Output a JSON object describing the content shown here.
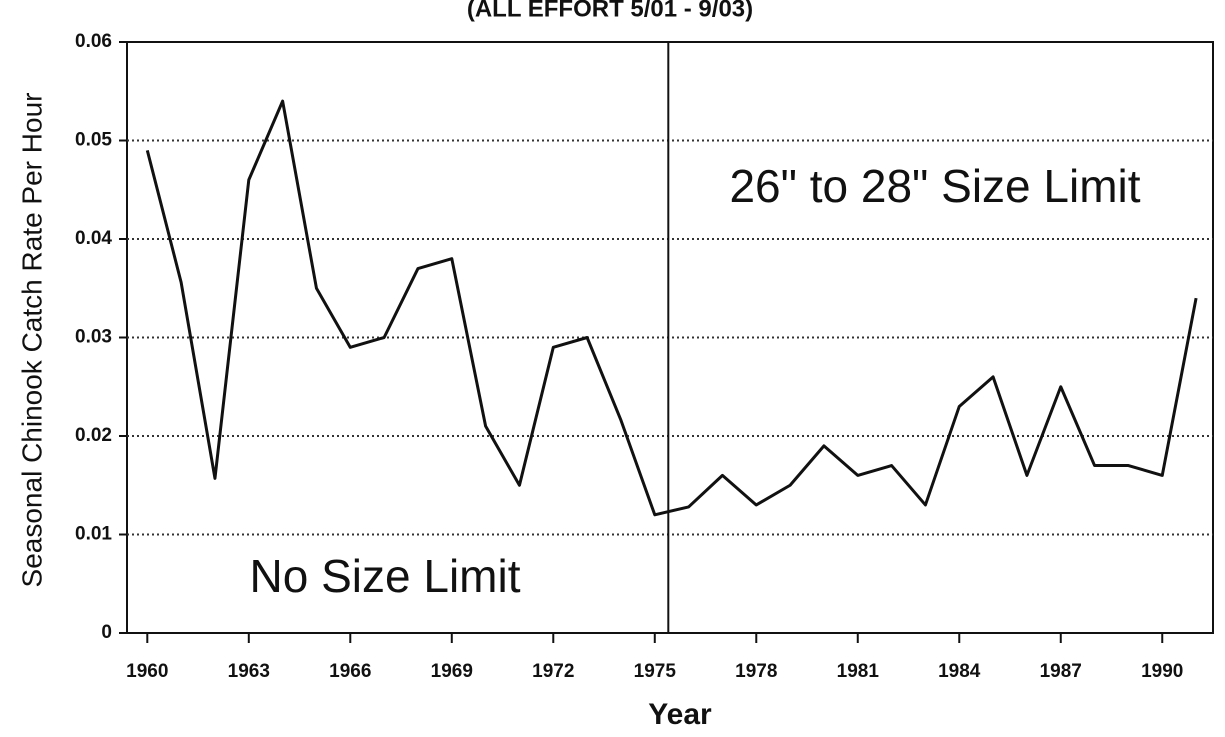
{
  "chart_data": {
    "type": "line",
    "title": "(ALL EFFORT 5/01 - 9/03)",
    "xlabel": "Year",
    "ylabel": "Seasonal Chinook Catch Rate Per Hour",
    "x": [
      1960,
      1961,
      1962,
      1963,
      1964,
      1965,
      1966,
      1967,
      1968,
      1969,
      1970,
      1971,
      1972,
      1973,
      1974,
      1975,
      1976,
      1977,
      1978,
      1979,
      1980,
      1981,
      1982,
      1983,
      1984,
      1985,
      1986,
      1987,
      1988,
      1989,
      1990,
      1991
    ],
    "series": [
      {
        "name": "Catch rate",
        "color": "#111111",
        "values": [
          0.049,
          0.0356,
          0.0157,
          0.046,
          0.054,
          0.035,
          0.029,
          0.03,
          0.037,
          0.038,
          0.021,
          0.015,
          0.029,
          0.03,
          0.0216,
          0.012,
          0.0128,
          0.016,
          0.013,
          0.015,
          0.019,
          0.016,
          0.017,
          0.013,
          0.023,
          0.026,
          0.016,
          0.025,
          0.017,
          0.017,
          0.016,
          0.034
        ]
      }
    ],
    "xlim": [
      1959.4,
      1991.5
    ],
    "xticks": [
      1960,
      1963,
      1966,
      1969,
      1972,
      1975,
      1978,
      1981,
      1984,
      1987,
      1990
    ],
    "ylim": [
      0,
      0.06
    ],
    "yticks": [
      0,
      0.01,
      0.02,
      0.03,
      0.04,
      0.05,
      0.06
    ],
    "grid": true,
    "reference_line": {
      "x": 1975.4
    },
    "annotations": [
      "26\" to 28\" Size Limit",
      "No Size Limit"
    ]
  }
}
